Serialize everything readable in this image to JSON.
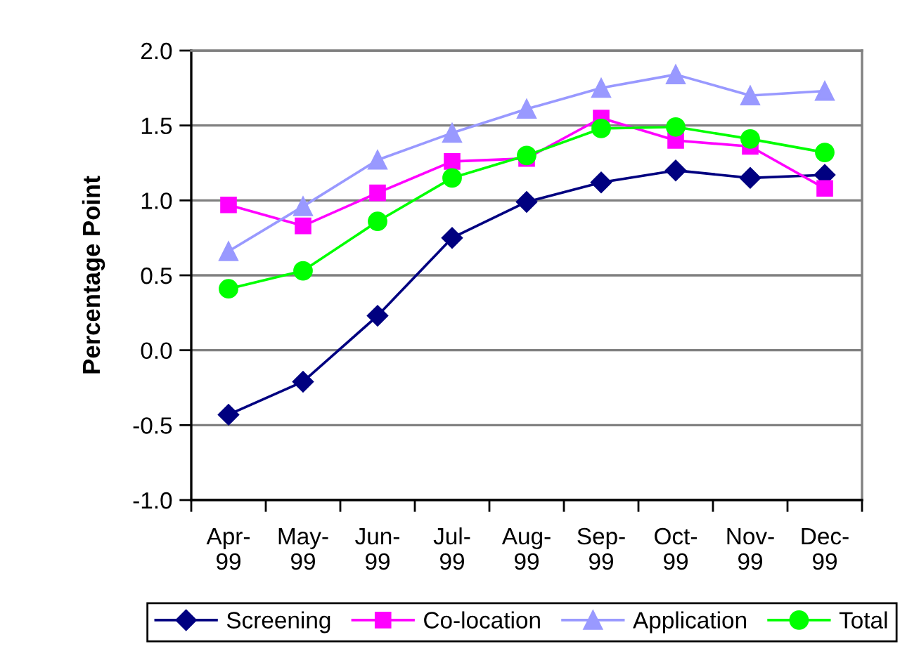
{
  "chart_data": {
    "type": "line",
    "ylabel": "Percentage Point",
    "categories": [
      "Apr-99",
      "May-99",
      "Jun-99",
      "Jul-99",
      "Aug-99",
      "Sep-99",
      "Oct-99",
      "Nov-99",
      "Dec-99"
    ],
    "series": [
      {
        "name": "Screening",
        "color": "#000080",
        "marker": "diamond",
        "values": [
          -0.43,
          -0.21,
          0.23,
          0.75,
          0.99,
          1.12,
          1.2,
          1.15,
          1.17
        ]
      },
      {
        "name": "Co-location",
        "color": "#ff00ff",
        "marker": "square",
        "values": [
          0.97,
          0.83,
          1.05,
          1.26,
          1.28,
          1.55,
          1.4,
          1.36,
          1.08
        ]
      },
      {
        "name": "Application",
        "color": "#9999ff",
        "marker": "triangle",
        "values": [
          0.66,
          0.96,
          1.27,
          1.45,
          1.61,
          1.75,
          1.84,
          1.7,
          1.73
        ]
      },
      {
        "name": "Total",
        "color": "#00ff00",
        "marker": "circle",
        "values": [
          0.41,
          0.53,
          0.86,
          1.15,
          1.3,
          1.48,
          1.49,
          1.41,
          1.32
        ]
      }
    ],
    "ylim": [
      -1.0,
      2.0
    ],
    "yticks": [
      {
        "value": -1.0,
        "label": "-1.0"
      },
      {
        "value": -0.5,
        "label": "-0.5"
      },
      {
        "value": 0.0,
        "label": "0.0"
      },
      {
        "value": 0.5,
        "label": "0.5"
      },
      {
        "value": 1.0,
        "label": "1.0"
      },
      {
        "value": 1.5,
        "label": "1.5"
      },
      {
        "value": 2.0,
        "label": "2.0"
      }
    ],
    "grid": "y",
    "legend": "bottom",
    "line_style": "solid"
  }
}
